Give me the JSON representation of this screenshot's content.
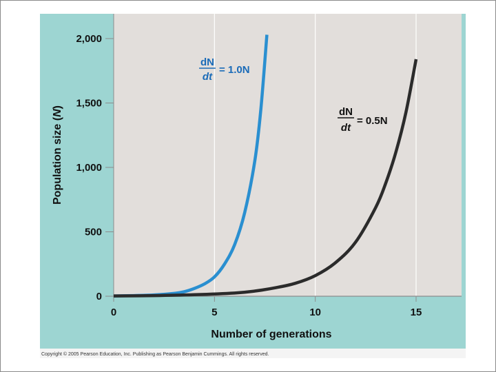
{
  "chart_data": {
    "type": "line",
    "xlabel": "Number of generations",
    "ylabel": "Population size (N)",
    "xlim": [
      0,
      15
    ],
    "ylim": [
      0,
      2000
    ],
    "x_ticks": [
      "0",
      "5",
      "10",
      "15"
    ],
    "y_ticks": [
      "0",
      "500",
      "1,000",
      "1,500",
      "2,000"
    ],
    "grid": "vertical",
    "series": [
      {
        "name": "dN/dt = 1.0N",
        "label_num": "dN",
        "label_den": "dt",
        "label_rhs": "= 1.0N",
        "color": "#2a8fd0",
        "x": [
          0,
          1,
          2,
          3,
          3.5,
          4,
          4.5,
          5,
          5.5,
          6,
          6.5,
          7,
          7.3,
          7.6
        ],
        "y": [
          2,
          5,
          10,
          22,
          35,
          60,
          95,
          150,
          250,
          400,
          650,
          1050,
          1450,
          2030
        ]
      },
      {
        "name": "dN/dt = 0.5N",
        "label_num": "dN",
        "label_den": "dt",
        "label_rhs": "= 0.5N",
        "color": "#2b2b2b",
        "x": [
          0,
          2,
          4,
          6,
          7,
          8,
          9,
          10,
          11,
          12,
          13,
          13.5,
          14,
          14.5,
          15
        ],
        "y": [
          2,
          5,
          12,
          25,
          40,
          65,
          100,
          160,
          260,
          420,
          690,
          880,
          1120,
          1430,
          1840
        ]
      }
    ],
    "colors": {
      "panel_bg": "#9dd5d2",
      "plot_bg": "#e2dedb",
      "grid": "#ffffff"
    }
  },
  "copyright": "Copyright © 2005 Pearson Education, Inc. Publishing as Pearson Benjamin Cummings. All rights reserved."
}
